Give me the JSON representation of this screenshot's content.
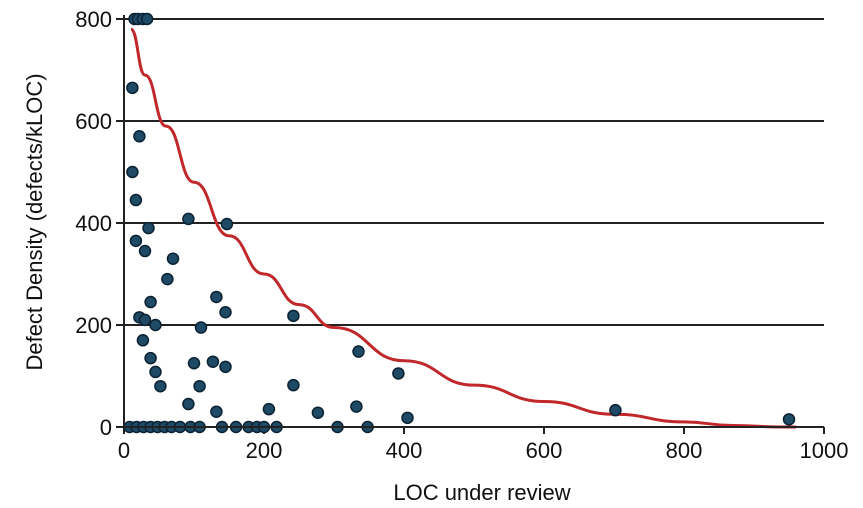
{
  "chart_data": {
    "type": "scatter",
    "title": "",
    "xlabel": "LOC under review",
    "ylabel": "Defect Density (defects/kLOC)",
    "xlim": [
      0,
      1000
    ],
    "ylim": [
      0,
      800
    ],
    "x_ticks": [
      "0",
      "200",
      "400",
      "600",
      "800",
      "1000"
    ],
    "y_ticks": [
      "0",
      "200",
      "400",
      "600",
      "800"
    ],
    "grid": "horizontal",
    "colors": {
      "point": "#1f4a66",
      "trend": "#c0282b",
      "grid": "#222222"
    },
    "series": [
      {
        "values": [
          [
            15,
            800
          ],
          [
            20,
            800
          ],
          [
            27,
            800
          ],
          [
            33,
            800
          ],
          [
            12,
            665
          ],
          [
            22,
            570
          ],
          [
            12,
            500
          ],
          [
            17,
            445
          ],
          [
            17,
            365
          ],
          [
            35,
            390
          ],
          [
            30,
            345
          ],
          [
            92,
            408
          ],
          [
            147,
            398
          ],
          [
            70,
            330
          ],
          [
            62,
            290
          ],
          [
            38,
            245
          ],
          [
            22,
            215
          ],
          [
            30,
            210
          ],
          [
            45,
            200
          ],
          [
            27,
            170
          ],
          [
            38,
            135
          ],
          [
            45,
            108
          ],
          [
            52,
            80
          ],
          [
            110,
            195
          ],
          [
            132,
            255
          ],
          [
            145,
            225
          ],
          [
            242,
            218
          ],
          [
            335,
            148
          ],
          [
            100,
            125
          ],
          [
            127,
            128
          ],
          [
            145,
            118
          ],
          [
            108,
            80
          ],
          [
            92,
            45
          ],
          [
            132,
            30
          ],
          [
            207,
            35
          ],
          [
            242,
            82
          ],
          [
            277,
            28
          ],
          [
            332,
            40
          ],
          [
            392,
            105
          ],
          [
            405,
            18
          ],
          [
            702,
            33
          ],
          [
            950,
            15
          ],
          [
            8,
            0
          ],
          [
            18,
            0
          ],
          [
            28,
            0
          ],
          [
            38,
            0
          ],
          [
            48,
            0
          ],
          [
            58,
            0
          ],
          [
            68,
            0
          ],
          [
            80,
            0
          ],
          [
            95,
            0
          ],
          [
            108,
            0
          ],
          [
            140,
            0
          ],
          [
            160,
            0
          ],
          [
            178,
            0
          ],
          [
            190,
            0
          ],
          [
            200,
            0
          ],
          [
            218,
            0
          ],
          [
            305,
            0
          ],
          [
            348,
            0
          ]
        ]
      }
    ],
    "trendline": {
      "x": [
        10,
        30,
        60,
        100,
        150,
        200,
        250,
        300,
        400,
        500,
        600,
        700,
        800,
        870,
        940,
        960
      ],
      "y": [
        780,
        690,
        590,
        480,
        375,
        300,
        240,
        195,
        130,
        82,
        50,
        25,
        10,
        3,
        0,
        0
      ]
    }
  }
}
